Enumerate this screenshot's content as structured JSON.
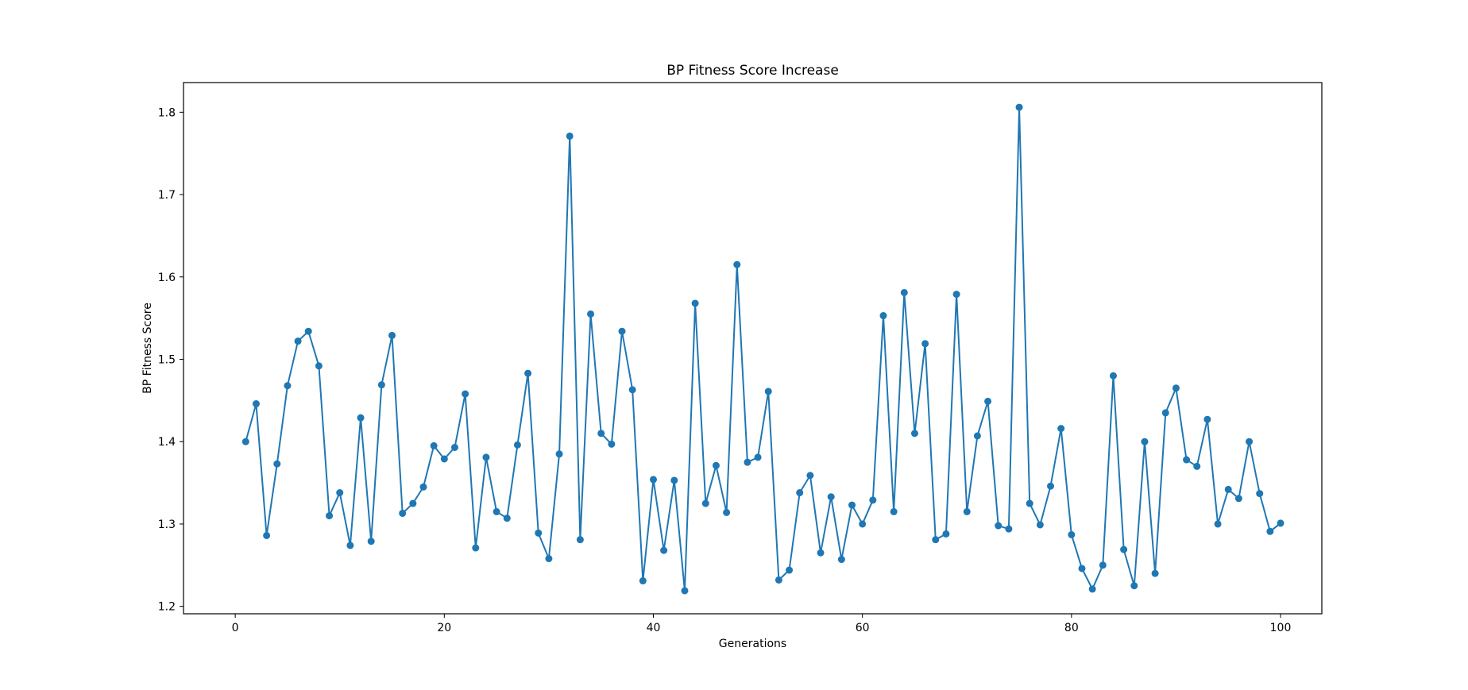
{
  "chart_data": {
    "type": "line",
    "title": "BP Fitness Score Increase",
    "xlabel": "Generations",
    "ylabel": "BP Fitness Score",
    "xlim": [
      -4.95,
      103.95
    ],
    "ylim": [
      1.191,
      1.836
    ],
    "xticks": [
      0,
      20,
      40,
      60,
      80,
      100
    ],
    "yticks": [
      1.2,
      1.3,
      1.4,
      1.5,
      1.6,
      1.7,
      1.8
    ],
    "grid": false,
    "line_color": "#1f77b4",
    "marker": "circle",
    "series": [
      {
        "x": [
          1,
          2,
          3,
          4,
          5,
          6,
          7,
          8,
          9,
          10,
          11,
          12,
          13,
          14,
          15,
          16,
          17,
          18,
          19,
          20,
          21,
          22,
          23,
          24,
          25,
          26,
          27,
          28,
          29,
          30,
          31,
          32,
          33,
          34,
          35,
          36,
          37,
          38,
          39,
          40,
          41,
          42,
          43,
          44,
          45,
          46,
          47,
          48,
          49,
          50,
          51,
          52,
          53,
          54,
          55,
          56,
          57,
          58,
          59,
          60,
          61,
          62,
          63,
          64,
          65,
          66,
          67,
          68,
          69,
          70,
          71,
          72,
          73,
          74,
          75,
          76,
          77,
          78,
          79,
          80,
          81,
          82,
          83,
          84,
          85,
          86,
          87,
          88,
          89,
          90,
          91,
          92,
          93,
          94,
          95,
          96,
          97,
          98,
          99,
          100
        ],
        "values": [
          1.4,
          1.446,
          1.286,
          1.373,
          1.468,
          1.522,
          1.534,
          1.492,
          1.31,
          1.338,
          1.274,
          1.429,
          1.279,
          1.469,
          1.529,
          1.313,
          1.325,
          1.345,
          1.395,
          1.379,
          1.393,
          1.458,
          1.271,
          1.381,
          1.315,
          1.307,
          1.396,
          1.483,
          1.289,
          1.258,
          1.385,
          1.771,
          1.281,
          1.555,
          1.41,
          1.397,
          1.534,
          1.463,
          1.231,
          1.354,
          1.268,
          1.353,
          1.219,
          1.568,
          1.325,
          1.371,
          1.314,
          1.615,
          1.375,
          1.381,
          1.461,
          1.232,
          1.244,
          1.338,
          1.359,
          1.265,
          1.333,
          1.257,
          1.323,
          1.3,
          1.329,
          1.553,
          1.315,
          1.581,
          1.41,
          1.519,
          1.281,
          1.288,
          1.579,
          1.315,
          1.407,
          1.449,
          1.298,
          1.294,
          1.806,
          1.325,
          1.299,
          1.346,
          1.416,
          1.287,
          1.246,
          1.221,
          1.25,
          1.48,
          1.269,
          1.225,
          1.4,
          1.24,
          1.435,
          1.465,
          1.378,
          1.37,
          1.427,
          1.3,
          1.342,
          1.331,
          1.4,
          1.337,
          1.291,
          1.301
        ]
      }
    ]
  }
}
